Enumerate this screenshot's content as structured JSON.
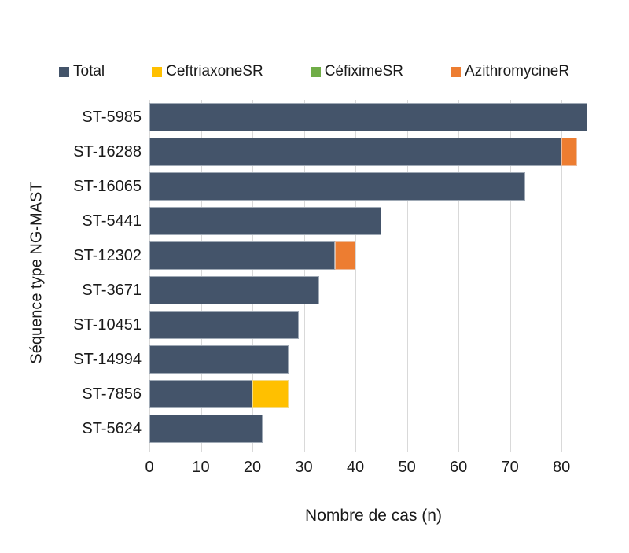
{
  "chart_data": {
    "type": "bar",
    "orientation": "horizontal",
    "xlabel": "Nombre de cas (n)",
    "ylabel": "Séquence type NG-MAST",
    "xlim": [
      0,
      87
    ],
    "xticks": [
      0,
      10,
      20,
      30,
      40,
      50,
      60,
      70,
      80
    ],
    "grid": "vertical",
    "legend_position": "top",
    "legend": [
      {
        "name": "Total",
        "color": "#44546A"
      },
      {
        "name": "CeftriaxoneSR",
        "color": "#FFC000"
      },
      {
        "name": "CéfiximeSR",
        "color": "#70AD47"
      },
      {
        "name": "AzithromycineR",
        "color": "#ED7D31"
      }
    ],
    "rows": [
      {
        "label": "ST-5985",
        "total": 85,
        "segments": [
          {
            "series": "Total",
            "value": 85
          }
        ]
      },
      {
        "label": "ST-16288",
        "total": 83,
        "segments": [
          {
            "series": "Total",
            "value": 80
          },
          {
            "series": "AzithromycineR",
            "value": 3
          }
        ]
      },
      {
        "label": "ST-16065",
        "total": 73,
        "segments": [
          {
            "series": "Total",
            "value": 73
          }
        ]
      },
      {
        "label": "ST-5441",
        "total": 45,
        "segments": [
          {
            "series": "Total",
            "value": 45
          }
        ]
      },
      {
        "label": "ST-12302",
        "total": 40,
        "segments": [
          {
            "series": "Total",
            "value": 36
          },
          {
            "series": "AzithromycineR",
            "value": 4
          }
        ]
      },
      {
        "label": "ST-3671",
        "total": 33,
        "segments": [
          {
            "series": "Total",
            "value": 33
          }
        ]
      },
      {
        "label": "ST-10451",
        "total": 29,
        "segments": [
          {
            "series": "Total",
            "value": 29
          }
        ]
      },
      {
        "label": "ST-14994",
        "total": 27,
        "segments": [
          {
            "series": "Total",
            "value": 27
          }
        ]
      },
      {
        "label": "ST-7856",
        "total": 27,
        "segments": [
          {
            "series": "Total",
            "value": 20
          },
          {
            "series": "CeftriaxoneSR",
            "value": 7
          }
        ]
      },
      {
        "label": "ST-5624",
        "total": 22,
        "segments": [
          {
            "series": "Total",
            "value": 22
          }
        ]
      }
    ],
    "colors": {
      "gridline": "#d9d9d9",
      "text": "#1a1a1a"
    }
  }
}
